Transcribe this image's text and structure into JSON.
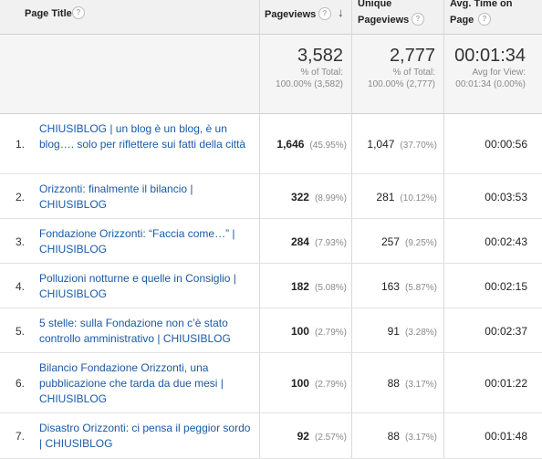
{
  "header": {
    "page_title": "Page Title",
    "pageviews": "Pageviews",
    "unique_line1": "Unique",
    "unique_line2": "Pageviews",
    "avg_line1": "Avg. Time on",
    "avg_line2": "Page",
    "help_glyph": "?",
    "sort_glyph": "↓"
  },
  "summary": {
    "pageviews": {
      "total": "3,582",
      "line1": "% of Total:",
      "line2": "100.00% (3,582)"
    },
    "unique": {
      "total": "2,777",
      "line1": "% of Total:",
      "line2": "100.00% (2,777)"
    },
    "avg": {
      "total": "00:01:34",
      "line1": "Avg for View:",
      "line2": "00:01:34 (0.00%)"
    }
  },
  "rows": [
    {
      "index": "1.",
      "title": "CHIUSIBLOG | un blog è un blog, è un blog…. solo per riflettere sui fatti della città",
      "pageviews": "1,646",
      "pv_pct": "(45.95%)",
      "unique": "1,047",
      "u_pct": "(37.70%)",
      "avg": "00:00:56"
    },
    {
      "index": "2.",
      "title": "Orizzonti: finalmente il bilancio | CHIUSIBLOG",
      "pageviews": "322",
      "pv_pct": "(8.99%)",
      "unique": "281",
      "u_pct": "(10.12%)",
      "avg": "00:03:53"
    },
    {
      "index": "3.",
      "title": "Fondazione Orizzonti: “Faccia come…” | CHIUSIBLOG",
      "pageviews": "284",
      "pv_pct": "(7.93%)",
      "unique": "257",
      "u_pct": "(9.25%)",
      "avg": "00:02:43"
    },
    {
      "index": "4.",
      "title": "Polluzioni notturne e quelle in Consiglio | CHIUSIBLOG",
      "pageviews": "182",
      "pv_pct": "(5.08%)",
      "unique": "163",
      "u_pct": "(5.87%)",
      "avg": "00:02:15"
    },
    {
      "index": "5.",
      "title": "5 stelle: sulla Fondazione non c’è stato controllo amministrativo | CHIUSIBLOG",
      "pageviews": "100",
      "pv_pct": "(2.79%)",
      "unique": "91",
      "u_pct": "(3.28%)",
      "avg": "00:02:37"
    },
    {
      "index": "6.",
      "title": "Bilancio Fondazione Orizzonti, una pubblicazione che tarda da due mesi | CHIUSIBLOG",
      "pageviews": "100",
      "pv_pct": "(2.79%)",
      "unique": "88",
      "u_pct": "(3.17%)",
      "avg": "00:01:22"
    },
    {
      "index": "7.",
      "title": "Disastro Orizzonti: ci pensa il peggior sordo | CHIUSIBLOG",
      "pageviews": "92",
      "pv_pct": "(2.57%)",
      "unique": "88",
      "u_pct": "(3.17%)",
      "avg": "00:01:48"
    }
  ],
  "colors": {
    "link": "#1a5aa6",
    "header_bg": "#f1f1f1",
    "summary_bg": "#f5f5f5"
  }
}
